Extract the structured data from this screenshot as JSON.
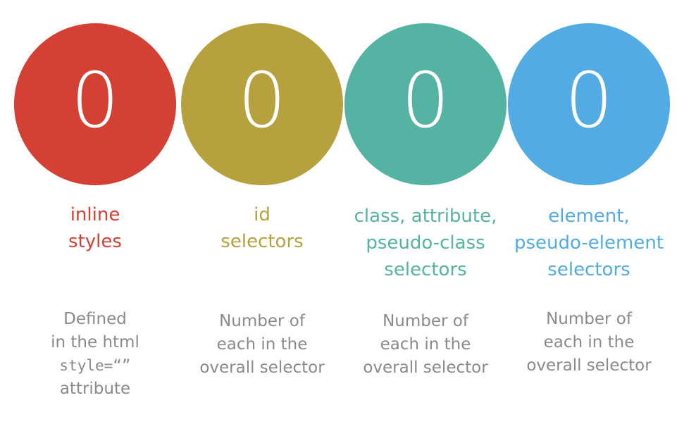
{
  "columns": [
    {
      "digit": "0",
      "color": "#d44034",
      "label": [
        "inline",
        "styles"
      ],
      "desc": [
        "Defined",
        "in the html",
        "style=“”",
        "attribute"
      ]
    },
    {
      "digit": "0",
      "color": "#b6a13e",
      "label": [
        "id",
        "selectors"
      ],
      "desc": [
        "Number of",
        "each in the",
        "overall selector"
      ]
    },
    {
      "digit": "0",
      "color": "#54b3a3",
      "label": [
        "class, attribute,",
        "pseudo-class",
        "selectors"
      ],
      "desc": [
        "Number of",
        "each in the",
        "overall selector"
      ]
    },
    {
      "digit": "0",
      "color": "#52abe2",
      "label": [
        "element,",
        "pseudo-element",
        "selectors"
      ],
      "desc": [
        "Number of",
        "each in the",
        "overall selector"
      ]
    }
  ]
}
